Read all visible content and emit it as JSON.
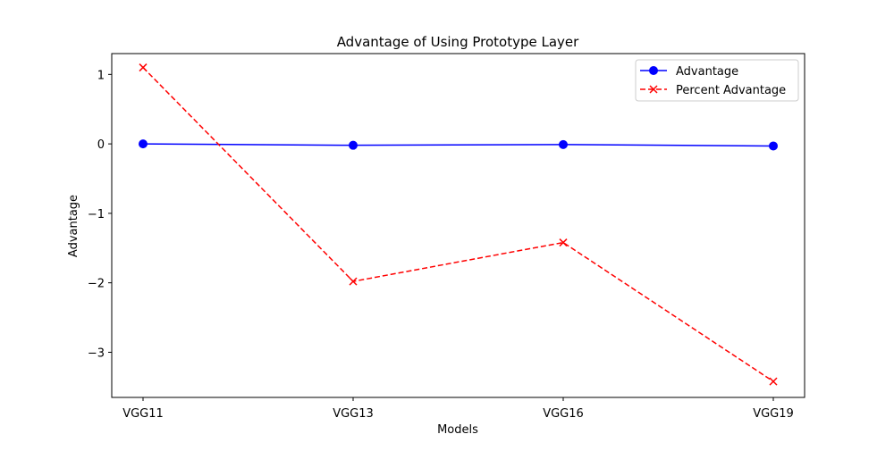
{
  "chart_data": {
    "type": "line",
    "title": "Advantage of Using Prototype Layer",
    "xlabel": "Models",
    "ylabel": "Advantage",
    "categories": [
      "VGG11",
      "VGG13",
      "VGG16",
      "VGG19"
    ],
    "ylim": [
      -3.65,
      1.3
    ],
    "yticks": [
      1,
      0,
      -1,
      -2,
      -3
    ],
    "ytick_labels": [
      "1",
      "0",
      "−1",
      "−2",
      "−3"
    ],
    "grid": false,
    "legend_position": "upper right",
    "series": [
      {
        "name": "Advantage",
        "values": [
          0.0,
          -0.02,
          -0.01,
          -0.03
        ],
        "color": "#0000ff",
        "line_style": "solid",
        "marker": "circle"
      },
      {
        "name": "Percent Advantage",
        "values": [
          1.1,
          -1.98,
          -1.42,
          -3.42
        ],
        "color": "#ff0000",
        "line_style": "dashed",
        "marker": "x"
      }
    ]
  }
}
